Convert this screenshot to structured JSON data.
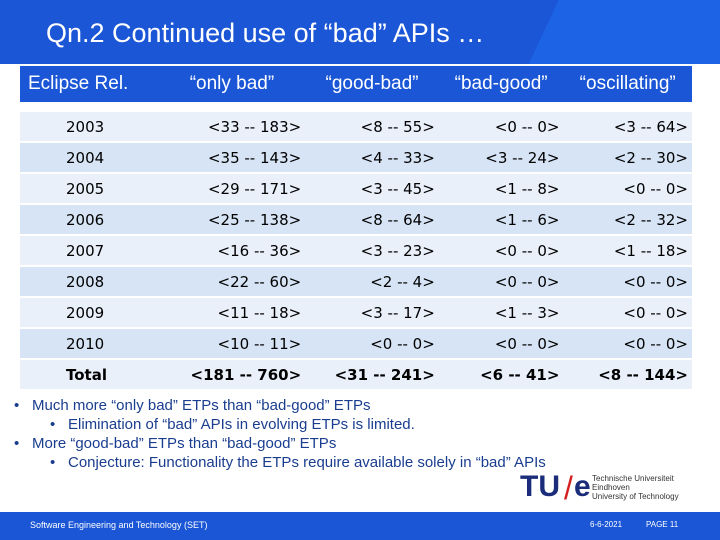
{
  "title": "Qn.2 Continued use of “bad” APIs …",
  "table": {
    "headers": [
      "Eclipse Rel.",
      "“only bad”",
      "“good-bad”",
      "“bad-good”",
      "“oscillating”"
    ],
    "rows": [
      [
        "2003",
        "<33 -- 183>",
        "<8 -- 55>",
        "<0 -- 0>",
        "<3 -- 64>"
      ],
      [
        "2004",
        "<35 -- 143>",
        "<4 -- 33>",
        "<3 -- 24>",
        "<2 -- 30>"
      ],
      [
        "2005",
        "<29 -- 171>",
        "<3 -- 45>",
        "<1 -- 8>",
        "<0 -- 0>"
      ],
      [
        "2006",
        "<25 -- 138>",
        "<8 -- 64>",
        "<1 -- 6>",
        "<2 -- 32>"
      ],
      [
        "2007",
        "<16 -- 36>",
        "<3 -- 23>",
        "<0 -- 0>",
        "<1 -- 18>"
      ],
      [
        "2008",
        "<22 -- 60>",
        "<2 -- 4>",
        "<0 -- 0>",
        "<0 -- 0>"
      ],
      [
        "2009",
        "<11 -- 18>",
        "<3 -- 17>",
        "<1 -- 3>",
        "<0 -- 0>"
      ],
      [
        "2010",
        "<10 -- 11>",
        "<0 -- 0>",
        "<0 -- 0>",
        "<0 -- 0>"
      ],
      [
        "Total",
        "<181 -- 760>",
        "<31 -- 241>",
        "<6 -- 41>",
        "<8 -- 144>"
      ]
    ]
  },
  "bullets": [
    {
      "text": "Much more “only bad” ETPs than “bad-good” ETPs",
      "sub": "Elimination of “bad” APIs in evolving ETPs is limited."
    },
    {
      "text": "More “good-bad” ETPs than “bad-good” ETPs",
      "sub": "Conjecture: Functionality the ETPs require available solely in “bad” APIs"
    }
  ],
  "logo": {
    "tu": "TU",
    "slash": "/",
    "e": "e",
    "line1": "Technische Universiteit",
    "line2": "Eindhoven",
    "line3": "University of Technology"
  },
  "footer": {
    "left": "Software Engineering and Technology (SET)",
    "date": "6-6-2021",
    "page": "PAGE 11"
  },
  "colors": {
    "brand_blue": "#1a56d6",
    "row_light": "#d6e4f5",
    "accent_red": "#d42020"
  }
}
